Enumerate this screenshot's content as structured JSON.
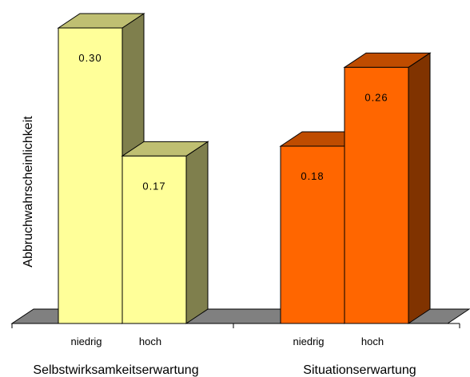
{
  "chart_data": {
    "type": "bar",
    "ylabel": "Abbruchwahrscheinlichkeit",
    "xlabel": "",
    "ylim": [
      0,
      0.3
    ],
    "grid": false,
    "legend": "none",
    "groups": [
      {
        "name": "Selbstwirksamkeitserwartung",
        "categories": [
          "niedrig",
          "hoch"
        ],
        "values": [
          0.3,
          0.17
        ],
        "labels": [
          "0.30",
          "0.17"
        ],
        "colors": {
          "front": "#FFFF99",
          "side": "#7F7F4D",
          "top": "#BFBF72"
        }
      },
      {
        "name": "Situationserwartung",
        "categories": [
          "niedrig",
          "hoch"
        ],
        "values": [
          0.18,
          0.26
        ],
        "labels": [
          "0.18",
          "0.26"
        ],
        "colors": {
          "front": "#FF6600",
          "side": "#803300",
          "top": "#BF4C00"
        }
      }
    ],
    "floor_color": "#808080"
  }
}
